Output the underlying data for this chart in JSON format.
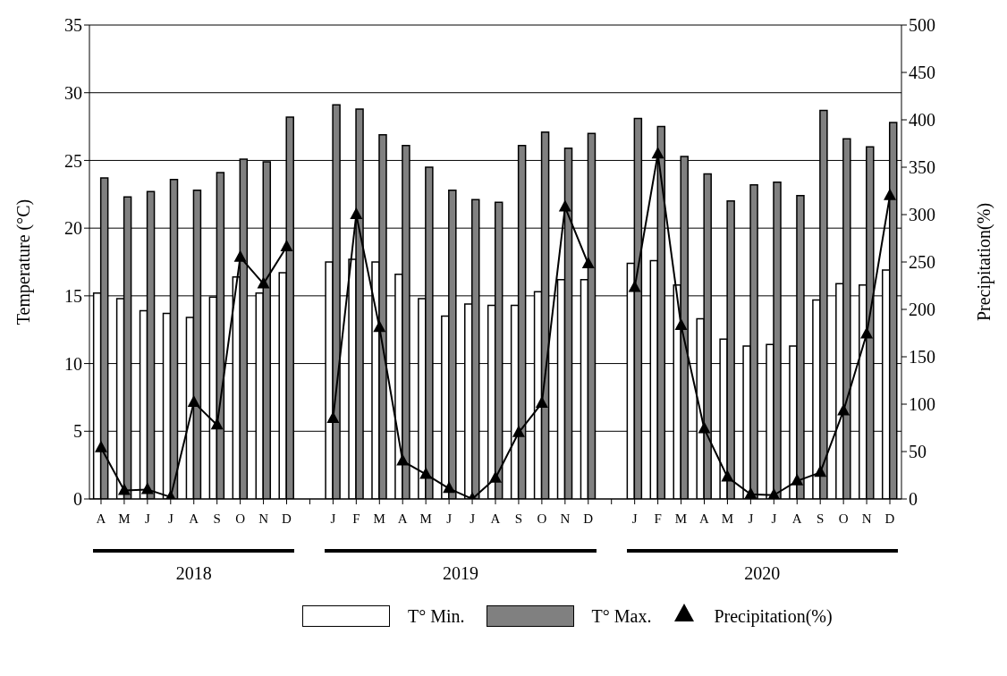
{
  "chart_data": {
    "type": "bar",
    "categories": [
      "A",
      "M",
      "J",
      "J",
      "A",
      "S",
      "O",
      "N",
      "D",
      null,
      "J",
      "F",
      "M",
      "A",
      "M",
      "J",
      "J",
      "A",
      "S",
      "O",
      "N",
      "D",
      null,
      "J",
      "F",
      "M",
      "A",
      "M",
      "J",
      "J",
      "A",
      "S",
      "O",
      "N",
      "D"
    ],
    "ylabel": "Temperature (°C)",
    "y2label": "Precipitation(%)",
    "ylim": [
      0,
      35
    ],
    "yticks": [
      0,
      5,
      10,
      15,
      20,
      25,
      30,
      35
    ],
    "y2lim": [
      0,
      500
    ],
    "y2ticks": [
      0,
      50,
      100,
      150,
      200,
      250,
      300,
      350,
      400,
      450,
      500
    ],
    "grid": "y",
    "legend": "bottom",
    "marker": "triangle",
    "line_style": "solid",
    "annotations": [
      "2018",
      "2019",
      "2020"
    ],
    "series": [
      {
        "name": "T° Min.",
        "color": "#ffffff",
        "values": [
          15.2,
          14.8,
          13.9,
          13.7,
          13.4,
          14.9,
          16.4,
          15.2,
          16.7,
          null,
          17.5,
          17.7,
          17.5,
          16.6,
          14.8,
          13.5,
          14.4,
          14.3,
          14.3,
          15.3,
          16.2,
          16.2,
          null,
          17.4,
          17.6,
          15.8,
          13.3,
          11.8,
          11.3,
          11.4,
          11.3,
          14.7,
          15.9,
          15.8,
          16.9
        ]
      },
      {
        "name": "T° Max.",
        "color": "#808080",
        "values": [
          23.7,
          22.3,
          22.7,
          23.6,
          22.8,
          24.1,
          25.1,
          24.9,
          28.2,
          null,
          29.1,
          28.8,
          26.9,
          26.1,
          24.5,
          22.8,
          22.1,
          21.9,
          26.1,
          27.1,
          25.9,
          27.0,
          null,
          28.1,
          27.5,
          25.3,
          24.0,
          22.0,
          23.2,
          23.4,
          22.4,
          28.7,
          26.6,
          26.0,
          27.8
        ]
      },
      {
        "name": "Precipitation(%)",
        "type": "line",
        "axis": "y2",
        "color": "#000000",
        "values": [
          54,
          9,
          10,
          2,
          102,
          78,
          255,
          227,
          266,
          null,
          85,
          300,
          181,
          40,
          26,
          11,
          0,
          22,
          70,
          101,
          308,
          248,
          null,
          223,
          364,
          183,
          74,
          23,
          5,
          4,
          19,
          28,
          93,
          174,
          320
        ]
      }
    ]
  }
}
